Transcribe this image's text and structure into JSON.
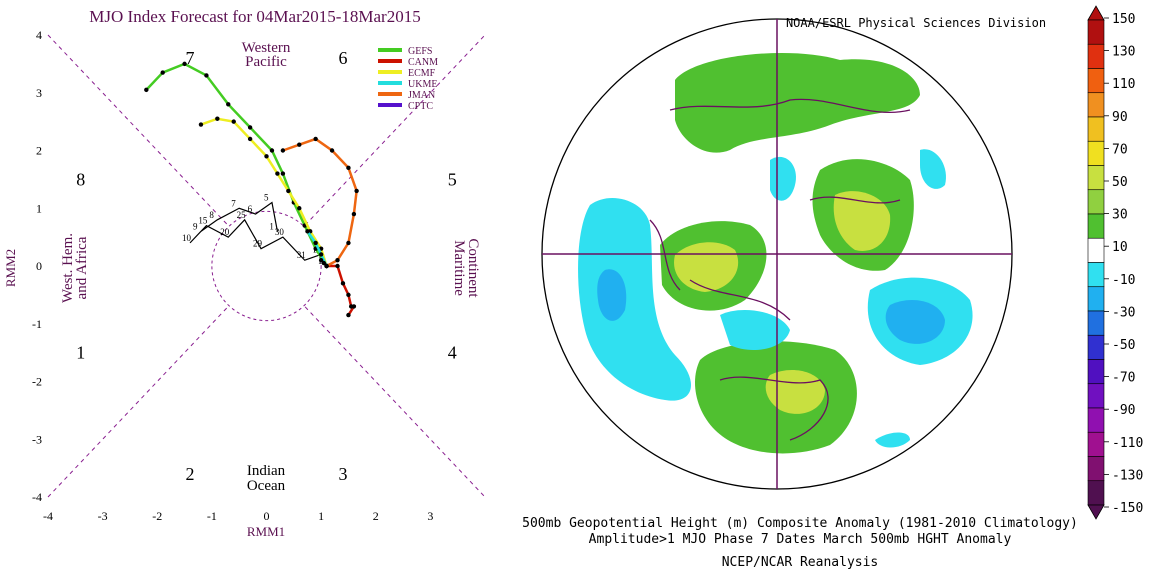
{
  "mjo": {
    "title": "MJO Index Forecast for 04Mar2015-18Mar2015",
    "xlabel": "RMM1",
    "ylabel": "RMM2",
    "phases": [
      "1",
      "2",
      "3",
      "4",
      "5",
      "6",
      "7",
      "8"
    ],
    "regions": {
      "western_pacific": [
        "Western",
        "Pacific"
      ],
      "maritime_continent": [
        "Maritime",
        "Continent"
      ],
      "indian_ocean": [
        "Indian",
        "Ocean"
      ],
      "west_hem": [
        "West. Hem.",
        "and Africa"
      ]
    },
    "legend": [
      "GEFS",
      "CANM",
      "ECMF",
      "UKME",
      "JMAN",
      "CPTC"
    ],
    "colors": {
      "GEFS": "#44cc22",
      "CANM": "#cc1100",
      "ECMF": "#eeee22",
      "UKME": "#22dddd",
      "JMAN": "#ee6611",
      "CPTC": "#5511cc"
    }
  },
  "chart_data": {
    "type": "line",
    "title": "MJO Index Forecast for 04Mar2015-18Mar2015",
    "xlabel": "RMM1",
    "ylabel": "RMM2",
    "xlim": [
      -4,
      4
    ],
    "ylim": [
      -4,
      4
    ],
    "xticks": [
      -4,
      -3,
      -2,
      -1,
      0,
      1,
      2,
      3
    ],
    "yticks": [
      4,
      3,
      2,
      1,
      0,
      -1,
      -2,
      -3,
      -4
    ],
    "observed_labels": [
      "1",
      "5",
      "6",
      "7",
      "8",
      "9",
      "10",
      "15",
      "20",
      "25",
      "29",
      "30",
      "31",
      "B",
      "E"
    ],
    "series": [
      {
        "name": "GEFS",
        "x": [
          1.1,
          0.9,
          0.7,
          0.5,
          0.3,
          0.1,
          -0.3,
          -0.7,
          -1.1,
          -1.5,
          -1.9,
          -2.2
        ],
        "y": [
          0.0,
          0.3,
          0.7,
          1.1,
          1.6,
          2.0,
          2.4,
          2.8,
          3.3,
          3.5,
          3.35,
          3.05
        ]
      },
      {
        "name": "CANM",
        "x": [
          1.1,
          1.3,
          1.4,
          1.5,
          1.55,
          1.6,
          1.5
        ],
        "y": [
          0.0,
          0.0,
          -0.3,
          -0.5,
          -0.7,
          -0.7,
          -0.85
        ]
      },
      {
        "name": "ECMF",
        "x": [
          1.1,
          1.0,
          0.8,
          0.6,
          0.4,
          0.2,
          0.0,
          -0.3,
          -0.6,
          -0.9,
          -1.2
        ],
        "y": [
          0.0,
          0.3,
          0.6,
          1.0,
          1.3,
          1.6,
          1.9,
          2.2,
          2.5,
          2.55,
          2.45
        ]
      },
      {
        "name": "UKME",
        "x": [
          1.1,
          1.0,
          0.9,
          0.75
        ],
        "y": [
          0.0,
          0.2,
          0.4,
          0.6
        ]
      },
      {
        "name": "JMAN",
        "x": [
          1.1,
          1.3,
          1.5,
          1.6,
          1.65,
          1.5,
          1.2,
          0.9,
          0.6,
          0.3
        ],
        "y": [
          0.0,
          0.1,
          0.4,
          0.9,
          1.3,
          1.7,
          2.0,
          2.2,
          2.1,
          2.0
        ]
      },
      {
        "name": "CPTC",
        "x": [
          1.1,
          1.05,
          1.0
        ],
        "y": [
          0.0,
          0.05,
          0.1
        ]
      }
    ]
  },
  "map": {
    "org": "NOAA/ESRL Physical Sciences Division",
    "caption1": "500mb Geopotential Height (m) Composite Anomaly (1981-2010 Climatology)",
    "caption2": "Amplitude>1 MJO Phase 7 Dates March 500mb HGHT Anomaly",
    "caption3": "NCEP/NCAR Reanalysis",
    "colorbar_labels": [
      "150",
      "130",
      "110",
      "90",
      "70",
      "50",
      "30",
      "10",
      "-10",
      "-30",
      "-50",
      "-70",
      "-90",
      "-110",
      "-130",
      "-150"
    ],
    "colorbar_colors": [
      "#b01010",
      "#e03010",
      "#f06010",
      "#f09020",
      "#f0c020",
      "#f0e020",
      "#c8e040",
      "#90d040",
      "#50c030",
      "#ffffff",
      "#30e0f0",
      "#20b0f0",
      "#2070e0",
      "#3030d0",
      "#5010c0",
      "#7010c0",
      "#9010b0",
      "#a01090",
      "#801070",
      "#501050"
    ]
  }
}
